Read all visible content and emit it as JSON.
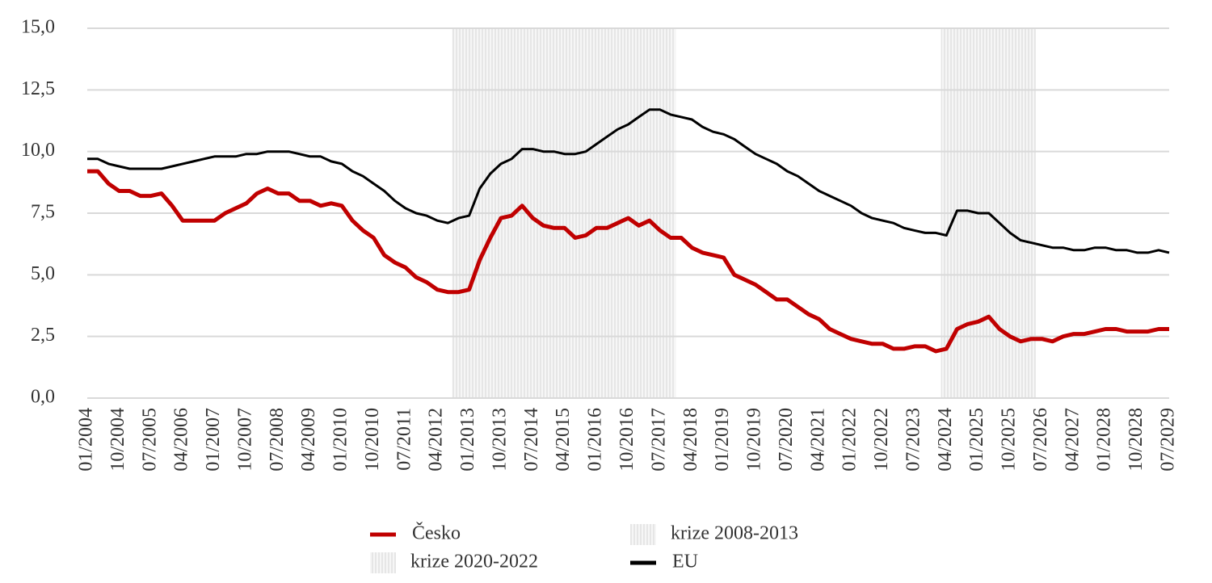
{
  "chart_data": {
    "type": "line",
    "categories": [
      "01/2004",
      null,
      null,
      "10/2004",
      null,
      null,
      "07/2005",
      null,
      null,
      "04/2006",
      null,
      null,
      "01/2007",
      null,
      null,
      "10/2007",
      null,
      null,
      "07/2008",
      null,
      null,
      "04/2009",
      null,
      null,
      "01/2010",
      null,
      null,
      "10/2010",
      null,
      null,
      "07/2011",
      null,
      null,
      "04/2012",
      null,
      null,
      "01/2013",
      null,
      null,
      "10/2013",
      null,
      null,
      "07/2014",
      null,
      null,
      "04/2015",
      null,
      null,
      "01/2016",
      null,
      null,
      "10/2016",
      null,
      null,
      "07/2017",
      null,
      null,
      "04/2018",
      null,
      null,
      "01/2019",
      null,
      null,
      "10/2019",
      null,
      null,
      "07/2020",
      null,
      null,
      "04/2021",
      null,
      null,
      "01/2022",
      null,
      null,
      "10/2022",
      null,
      null,
      "07/2023",
      null,
      null,
      "04/2024",
      null,
      null,
      "01/2025",
      null,
      null,
      "10/2025",
      null,
      null,
      "07/2026",
      null,
      null,
      "04/2027",
      null,
      null,
      "01/2028",
      null,
      null,
      "10/2028",
      null,
      null,
      "07/2029"
    ],
    "series": [
      {
        "name": "Česko",
        "color": "#c00000",
        "width": 5,
        "values": [
          9.2,
          9.2,
          8.7,
          8.4,
          8.4,
          8.2,
          8.2,
          8.3,
          7.8,
          7.2,
          7.2,
          7.2,
          7.2,
          7.5,
          7.7,
          7.9,
          8.3,
          8.5,
          8.3,
          8.3,
          8.0,
          8.0,
          7.8,
          7.9,
          7.8,
          7.2,
          6.8,
          6.5,
          5.8,
          5.5,
          5.3,
          4.9,
          4.7,
          4.4,
          4.3,
          4.3,
          4.4,
          5.6,
          6.5,
          7.3,
          7.4,
          7.8,
          7.3,
          7.0,
          6.9,
          6.9,
          6.5,
          6.6,
          6.9,
          6.9,
          7.1,
          7.3,
          7.0,
          7.2,
          6.8,
          6.5,
          6.5,
          6.1,
          5.9,
          5.8,
          5.7,
          5.0,
          4.8,
          4.6,
          4.3,
          4.0,
          4.0,
          3.7,
          3.4,
          3.2,
          2.8,
          2.6,
          2.4,
          2.3,
          2.2,
          2.2,
          2.0,
          2.0,
          2.1,
          2.1,
          1.9,
          2.0,
          2.8,
          3.0,
          3.1,
          3.3,
          2.8,
          2.5,
          2.3,
          2.4,
          2.4,
          2.3,
          2.5,
          2.6,
          2.6,
          2.7,
          2.8,
          2.8,
          2.7,
          2.7,
          2.7,
          2.8,
          2.8
        ]
      },
      {
        "name": "EU",
        "color": "#000000",
        "width": 3,
        "values": [
          9.7,
          9.7,
          9.5,
          9.4,
          9.3,
          9.3,
          9.3,
          9.3,
          9.4,
          9.5,
          9.6,
          9.7,
          9.8,
          9.8,
          9.8,
          9.9,
          9.9,
          10.0,
          10.0,
          10.0,
          9.9,
          9.8,
          9.8,
          9.6,
          9.5,
          9.2,
          9.0,
          8.7,
          8.4,
          8.0,
          7.7,
          7.5,
          7.4,
          7.2,
          7.1,
          7.3,
          7.4,
          8.5,
          9.1,
          9.5,
          9.7,
          10.1,
          10.1,
          10.0,
          10.0,
          9.9,
          9.9,
          10.0,
          10.3,
          10.6,
          10.9,
          11.1,
          11.4,
          11.7,
          11.7,
          11.5,
          11.4,
          11.3,
          11.0,
          10.8,
          10.7,
          10.5,
          10.2,
          9.9,
          9.7,
          9.5,
          9.2,
          9.0,
          8.7,
          8.4,
          8.2,
          8.0,
          7.8,
          7.5,
          7.3,
          7.2,
          7.1,
          6.9,
          6.8,
          6.7,
          6.7,
          6.6,
          7.6,
          7.6,
          7.5,
          7.5,
          7.1,
          6.7,
          6.4,
          6.3,
          6.2,
          6.1,
          6.1,
          6.0,
          6.0,
          6.1,
          6.1,
          6.0,
          6.0,
          5.9,
          5.9,
          6.0,
          5.9
        ]
      }
    ],
    "bands": [
      {
        "name": "krize 2008-2013",
        "start": 34.4,
        "end": 55.5
      },
      {
        "name": "krize 2020-2022",
        "start": 80.5,
        "end": 89.4
      }
    ],
    "ylim": [
      0,
      15
    ],
    "yticks": [
      {
        "value": 0,
        "label": "0,0"
      },
      {
        "value": 2.5,
        "label": "2,5"
      },
      {
        "value": 5,
        "label": "5,0"
      },
      {
        "value": 7.5,
        "label": "7,5"
      },
      {
        "value": 10,
        "label": "10,0"
      },
      {
        "value": 12.5,
        "label": "12,5"
      },
      {
        "value": 15,
        "label": "15,0"
      }
    ],
    "grid": true
  }
}
